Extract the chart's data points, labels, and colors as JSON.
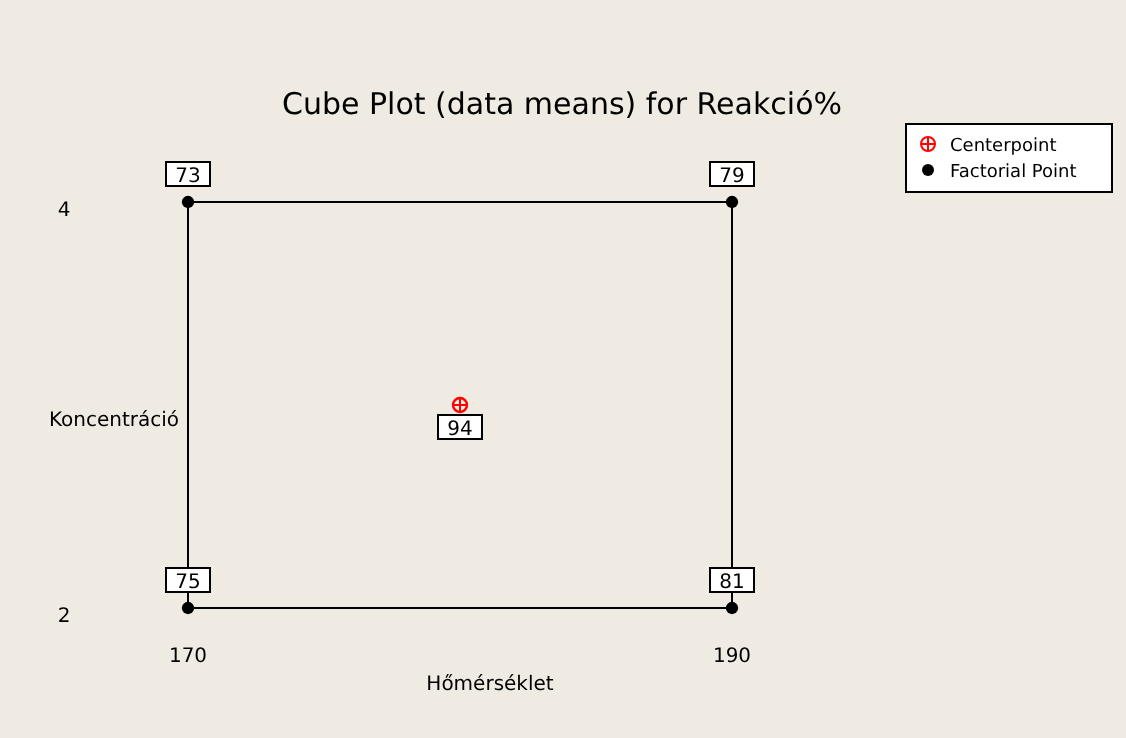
{
  "chart_data": {
    "type": "scatter",
    "title": "Cube Plot (data means) for Reakció%",
    "xlabel": "Hőmérséklet",
    "ylabel": "Koncentráció",
    "xlim": [
      170,
      190
    ],
    "ylim": [
      2,
      4
    ],
    "xticks": [
      170,
      190
    ],
    "yticks": [
      2,
      4
    ],
    "legend": "top right",
    "marker": "circle",
    "series": [
      {
        "name": "Centerpoint",
        "color": "#ff0000",
        "x": [
          180
        ],
        "values": [
          3
        ]
      },
      {
        "name": "Factorial Point",
        "color": "#000000",
        "x": [
          170,
          170,
          190,
          190
        ],
        "values": [
          2,
          4,
          2,
          4
        ]
      }
    ],
    "annotations": [
      {
        "text": "94",
        "x": 180,
        "y": 3
      },
      {
        "text": "75",
        "x": 170,
        "y": 2
      },
      {
        "text": "73",
        "x": 170,
        "y": 4
      },
      {
        "text": "81",
        "x": 190,
        "y": 2
      },
      {
        "text": "79",
        "x": 190,
        "y": 4
      }
    ]
  }
}
